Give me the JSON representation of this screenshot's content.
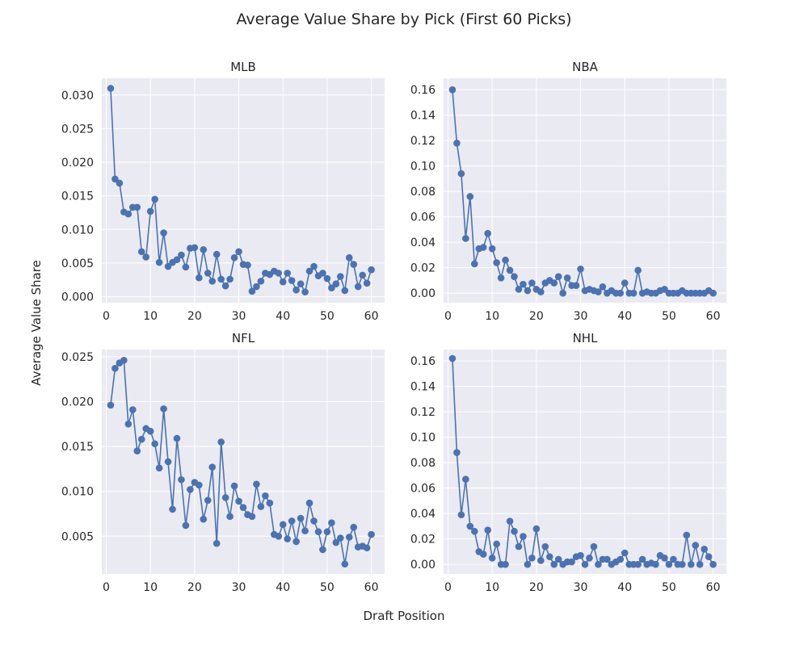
{
  "figure": {
    "title": "Average Value Share by Pick (First 60 Picks)",
    "xlabel": "Draft Position",
    "ylabel": "Average Value Share"
  },
  "colors": {
    "background": "#ffffff",
    "panel": "#eaeaf2",
    "grid": "#ffffff",
    "series": "#4c72b0",
    "text": "#262626"
  },
  "chart_data": [
    {
      "type": "line",
      "title": "MLB",
      "xlabel": "",
      "ylabel": "",
      "xlim": [
        -1,
        63
      ],
      "ylim": [
        -0.0009,
        0.0325
      ],
      "xticks": [
        0,
        10,
        20,
        30,
        40,
        50,
        60
      ],
      "yticks": [
        0.0,
        0.005,
        0.01,
        0.015,
        0.02,
        0.025,
        0.03
      ],
      "ytick_labels": [
        "0.000",
        "0.005",
        "0.010",
        "0.015",
        "0.020",
        "0.025",
        "0.030"
      ],
      "grid": true,
      "markers": true,
      "x": [
        1,
        2,
        3,
        4,
        5,
        6,
        7,
        8,
        9,
        10,
        11,
        12,
        13,
        14,
        15,
        16,
        17,
        18,
        19,
        20,
        21,
        22,
        23,
        24,
        25,
        26,
        27,
        28,
        29,
        30,
        31,
        32,
        33,
        34,
        35,
        36,
        37,
        38,
        39,
        40,
        41,
        42,
        43,
        44,
        45,
        46,
        47,
        48,
        49,
        50,
        51,
        52,
        53,
        54,
        55,
        56,
        57,
        58,
        59,
        60
      ],
      "y": [
        0.031,
        0.0175,
        0.0169,
        0.0126,
        0.0123,
        0.0133,
        0.0133,
        0.0067,
        0.0059,
        0.0127,
        0.0145,
        0.0051,
        0.0095,
        0.0045,
        0.0051,
        0.0055,
        0.0062,
        0.0044,
        0.0072,
        0.0073,
        0.0028,
        0.007,
        0.0035,
        0.0023,
        0.0063,
        0.0026,
        0.0016,
        0.0026,
        0.0058,
        0.0067,
        0.0048,
        0.0047,
        0.0008,
        0.0015,
        0.0023,
        0.0035,
        0.0033,
        0.0038,
        0.0035,
        0.0022,
        0.0035,
        0.0024,
        0.001,
        0.0019,
        0.0007,
        0.0038,
        0.0045,
        0.0031,
        0.0035,
        0.0027,
        0.0013,
        0.0019,
        0.003,
        0.0009,
        0.0058,
        0.0048,
        0.0015,
        0.0032,
        0.002,
        0.004
      ]
    },
    {
      "type": "line",
      "title": "NBA",
      "xlabel": "",
      "ylabel": "",
      "xlim": [
        -1,
        63
      ],
      "ylim": [
        -0.0075,
        0.169
      ],
      "xticks": [
        0,
        10,
        20,
        30,
        40,
        50,
        60
      ],
      "yticks": [
        0.0,
        0.02,
        0.04,
        0.06,
        0.08,
        0.1,
        0.12,
        0.14,
        0.16
      ],
      "ytick_labels": [
        "0.00",
        "0.02",
        "0.04",
        "0.06",
        "0.08",
        "0.10",
        "0.12",
        "0.14",
        "0.16"
      ],
      "grid": true,
      "markers": true,
      "x": [
        1,
        2,
        3,
        4,
        5,
        6,
        7,
        8,
        9,
        10,
        11,
        12,
        13,
        14,
        15,
        16,
        17,
        18,
        19,
        20,
        21,
        22,
        23,
        24,
        25,
        26,
        27,
        28,
        29,
        30,
        31,
        32,
        33,
        34,
        35,
        36,
        37,
        38,
        39,
        40,
        41,
        42,
        43,
        44,
        45,
        46,
        47,
        48,
        49,
        50,
        51,
        52,
        53,
        54,
        55,
        56,
        57,
        58,
        59,
        60
      ],
      "y": [
        0.16,
        0.118,
        0.094,
        0.043,
        0.076,
        0.023,
        0.035,
        0.036,
        0.047,
        0.035,
        0.024,
        0.012,
        0.026,
        0.018,
        0.013,
        0.003,
        0.007,
        0.002,
        0.008,
        0.003,
        0.001,
        0.008,
        0.01,
        0.008,
        0.013,
        0.0,
        0.012,
        0.006,
        0.006,
        0.019,
        0.002,
        0.003,
        0.002,
        0.001,
        0.005,
        0.0,
        0.002,
        0.0,
        0.0,
        0.008,
        0.0,
        0.0,
        0.018,
        0.0,
        0.001,
        0.0,
        0.0,
        0.002,
        0.003,
        0.0,
        0.0,
        0.0,
        0.002,
        0.0,
        0.0,
        0.0,
        0.0,
        0.0,
        0.002,
        0.0
      ]
    },
    {
      "type": "line",
      "title": "NFL",
      "xlabel": "",
      "ylabel": "",
      "xlim": [
        -1,
        63
      ],
      "ylim": [
        0.0008,
        0.0258
      ],
      "xticks": [
        0,
        10,
        20,
        30,
        40,
        50,
        60
      ],
      "yticks": [
        0.005,
        0.01,
        0.015,
        0.02,
        0.025
      ],
      "ytick_labels": [
        "0.005",
        "0.010",
        "0.015",
        "0.020",
        "0.025"
      ],
      "grid": true,
      "markers": true,
      "x": [
        1,
        2,
        3,
        4,
        5,
        6,
        7,
        8,
        9,
        10,
        11,
        12,
        13,
        14,
        15,
        16,
        17,
        18,
        19,
        20,
        21,
        22,
        23,
        24,
        25,
        26,
        27,
        28,
        29,
        30,
        31,
        32,
        33,
        34,
        35,
        36,
        37,
        38,
        39,
        40,
        41,
        42,
        43,
        44,
        45,
        46,
        47,
        48,
        49,
        50,
        51,
        52,
        53,
        54,
        55,
        56,
        57,
        58,
        59,
        60
      ],
      "y": [
        0.0196,
        0.0237,
        0.0243,
        0.0246,
        0.0175,
        0.0191,
        0.0145,
        0.0158,
        0.017,
        0.0167,
        0.0153,
        0.0126,
        0.0192,
        0.0133,
        0.008,
        0.0159,
        0.0113,
        0.0062,
        0.0102,
        0.011,
        0.0107,
        0.0069,
        0.009,
        0.0127,
        0.0042,
        0.0155,
        0.0093,
        0.0072,
        0.0106,
        0.0089,
        0.0082,
        0.0074,
        0.0072,
        0.0108,
        0.0083,
        0.0095,
        0.0087,
        0.0052,
        0.005,
        0.0063,
        0.0047,
        0.0067,
        0.0044,
        0.007,
        0.0056,
        0.0087,
        0.0067,
        0.0055,
        0.0035,
        0.0055,
        0.0065,
        0.0043,
        0.0048,
        0.0019,
        0.0049,
        0.006,
        0.0038,
        0.0039,
        0.0037,
        0.0052
      ]
    },
    {
      "type": "line",
      "title": "NHL",
      "xlabel": "",
      "ylabel": "",
      "xlim": [
        -1,
        63
      ],
      "ylim": [
        -0.0075,
        0.169
      ],
      "xticks": [
        0,
        10,
        20,
        30,
        40,
        50,
        60
      ],
      "yticks": [
        0.0,
        0.02,
        0.04,
        0.06,
        0.08,
        0.1,
        0.12,
        0.14,
        0.16
      ],
      "ytick_labels": [
        "0.00",
        "0.02",
        "0.04",
        "0.06",
        "0.08",
        "0.10",
        "0.12",
        "0.14",
        "0.16"
      ],
      "grid": true,
      "markers": true,
      "x": [
        1,
        2,
        3,
        4,
        5,
        6,
        7,
        8,
        9,
        10,
        11,
        12,
        13,
        14,
        15,
        16,
        17,
        18,
        19,
        20,
        21,
        22,
        23,
        24,
        25,
        26,
        27,
        28,
        29,
        30,
        31,
        32,
        33,
        34,
        35,
        36,
        37,
        38,
        39,
        40,
        41,
        42,
        43,
        44,
        45,
        46,
        47,
        48,
        49,
        50,
        51,
        52,
        53,
        54,
        55,
        56,
        57,
        58,
        59,
        60
      ],
      "y": [
        0.162,
        0.088,
        0.039,
        0.067,
        0.03,
        0.026,
        0.01,
        0.008,
        0.027,
        0.005,
        0.016,
        0.0,
        0.0,
        0.034,
        0.026,
        0.014,
        0.022,
        0.0,
        0.005,
        0.028,
        0.003,
        0.014,
        0.006,
        0.0,
        0.004,
        0.0,
        0.002,
        0.002,
        0.006,
        0.007,
        0.0,
        0.005,
        0.014,
        0.0,
        0.004,
        0.004,
        0.0,
        0.002,
        0.004,
        0.009,
        0.0,
        0.0,
        0.0,
        0.004,
        0.0,
        0.001,
        0.0,
        0.007,
        0.005,
        0.0,
        0.004,
        0.0,
        0.0,
        0.023,
        0.0,
        0.015,
        0.0,
        0.012,
        0.006,
        0.0
      ]
    }
  ]
}
